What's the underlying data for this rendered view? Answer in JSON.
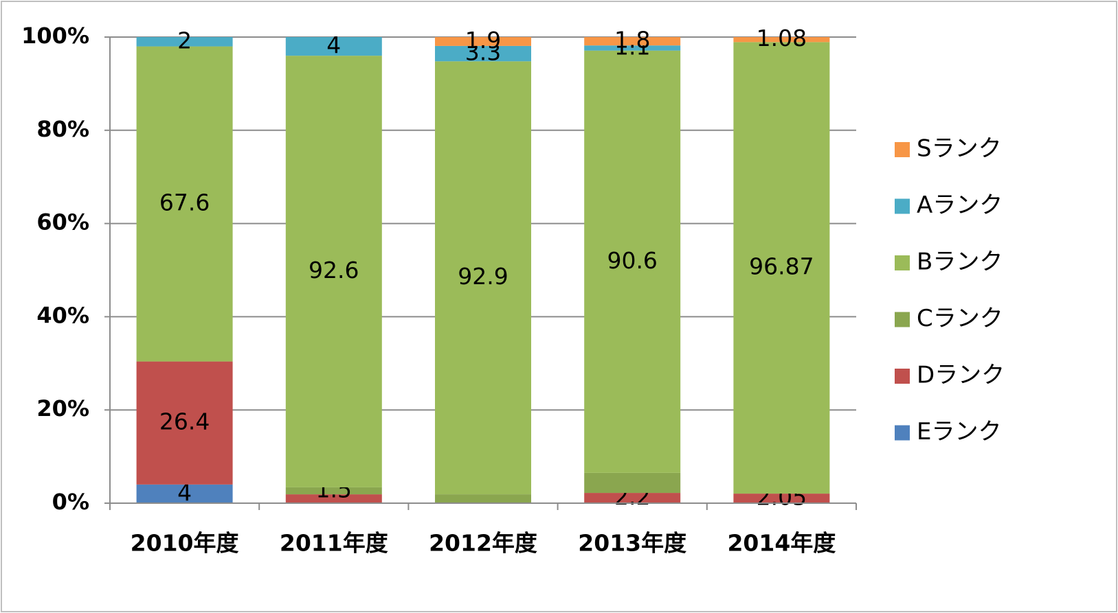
{
  "chart_data": {
    "type": "stacked_bar",
    "categories": [
      "2010年度",
      "2011年度",
      "2012年度",
      "2013年度",
      "2014年度"
    ],
    "series": [
      {
        "name": "Eランク",
        "color": "#4f81bd",
        "values": [
          4,
          0,
          0,
          0,
          0
        ],
        "value_labels": [
          "4",
          null,
          null,
          null,
          null
        ]
      },
      {
        "name": "Dランク",
        "color": "#c0504d",
        "values": [
          26.4,
          1.9,
          0,
          2.2,
          2.05
        ],
        "value_labels": [
          "26.4",
          null,
          null,
          "2.2",
          "2.05"
        ]
      },
      {
        "name": "Cランク",
        "color": "#8aa64f",
        "values": [
          0,
          1.5,
          1.9,
          4.3,
          0
        ],
        "value_labels": [
          null,
          "1.5",
          null,
          null,
          null
        ]
      },
      {
        "name": "Bランク",
        "color": "#9bbb59",
        "values": [
          67.6,
          92.6,
          92.9,
          90.6,
          96.87
        ],
        "value_labels": [
          "67.6",
          "92.6",
          "92.9",
          "90.6",
          "96.87"
        ]
      },
      {
        "name": "Aランク",
        "color": "#4bacc6",
        "values": [
          2,
          4,
          3.3,
          1.1,
          0
        ],
        "value_labels": [
          "2",
          "4",
          "3.3",
          "1.1",
          null
        ]
      },
      {
        "name": "Sランク",
        "color": "#f79646",
        "values": [
          0,
          0,
          1.9,
          1.8,
          1.08
        ],
        "value_labels": [
          null,
          null,
          "1.9",
          "1.8",
          "1.08"
        ]
      }
    ],
    "ylim": [
      0,
      100
    ],
    "yticks": [
      {
        "value": 0,
        "label": "0%"
      },
      {
        "value": 20,
        "label": "20%"
      },
      {
        "value": 40,
        "label": "40%"
      },
      {
        "value": 60,
        "label": "60%"
      },
      {
        "value": 80,
        "label": "80%"
      },
      {
        "value": 100,
        "label": "100%"
      }
    ],
    "grid": true,
    "legend": "right"
  }
}
